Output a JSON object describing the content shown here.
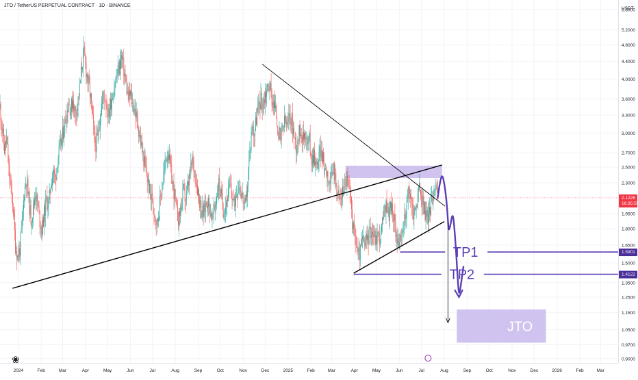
{
  "header": {
    "symbol": "JTO / TetherUS PERPETUAL CONTRACT · 1D · BINANCE"
  },
  "price_scale": {
    "currency": "USDT",
    "last_price": "2.1226",
    "countdown": "16:35:55",
    "tp1_price": "1.5901",
    "tp2_price": "1.4122"
  },
  "annotations": {
    "tp1": "TP1",
    "tp2": "TP2",
    "zone_label": "JTO"
  },
  "colors": {
    "up": "#26a69a",
    "down": "#ef5350",
    "annotation": "#5b3fb5",
    "zone_fill": "#c8b9ec",
    "trendline": "#000000",
    "last_price_badge": "#f23645",
    "tp_badge": "#4a2e9a"
  },
  "chart_data": {
    "type": "candlestick",
    "title": "JTO / TetherUS PERPETUAL CONTRACT · 1D · BINANCE",
    "yscale": "log",
    "ylim": [
      0.88,
      6.1
    ],
    "xlim": [
      "2023-12-07",
      "2026-03-25"
    ],
    "y_ticks": [
      5.8,
      5.2,
      4.8,
      4.4,
      4.0,
      3.6,
      3.3,
      3.0,
      2.7,
      2.5,
      2.3,
      1.95,
      1.8,
      1.65,
      1.5,
      1.35,
      1.25,
      1.15,
      1.05,
      0.97,
      0.9
    ],
    "x_ticks": [
      {
        "label": "2024",
        "date": "2024-01-01"
      },
      {
        "label": "Feb",
        "date": "2024-02-01"
      },
      {
        "label": "Mar",
        "date": "2024-03-01"
      },
      {
        "label": "Apr",
        "date": "2024-04-01"
      },
      {
        "label": "May",
        "date": "2024-05-01"
      },
      {
        "label": "Jun",
        "date": "2024-06-01"
      },
      {
        "label": "Jul",
        "date": "2024-07-01"
      },
      {
        "label": "Aug",
        "date": "2024-08-01"
      },
      {
        "label": "Sep",
        "date": "2024-09-01"
      },
      {
        "label": "Oct",
        "date": "2024-10-01"
      },
      {
        "label": "Nov",
        "date": "2024-11-01"
      },
      {
        "label": "Dec",
        "date": "2024-12-01"
      },
      {
        "label": "2025",
        "date": "2025-01-01"
      },
      {
        "label": "Feb",
        "date": "2025-02-01"
      },
      {
        "label": "Mar",
        "date": "2025-03-01"
      },
      {
        "label": "Apr",
        "date": "2025-04-01"
      },
      {
        "label": "May",
        "date": "2025-05-01"
      },
      {
        "label": "Jun",
        "date": "2025-06-01"
      },
      {
        "label": "Jul",
        "date": "2025-07-01"
      },
      {
        "label": "Aug",
        "date": "2025-08-01"
      },
      {
        "label": "Sep",
        "date": "2025-09-01"
      },
      {
        "label": "Oct",
        "date": "2025-10-01"
      },
      {
        "label": "Nov",
        "date": "2025-11-01"
      },
      {
        "label": "Dec",
        "date": "2025-12-01"
      },
      {
        "label": "2026",
        "date": "2026-01-01"
      },
      {
        "label": "Feb",
        "date": "2026-02-01"
      },
      {
        "label": "Mar",
        "date": "2026-03-01"
      }
    ],
    "series_path": [
      [
        "2023-12-07",
        3.45
      ],
      [
        "2023-12-10",
        3.05
      ],
      [
        "2023-12-13",
        2.75
      ],
      [
        "2023-12-16",
        2.9
      ],
      [
        "2023-12-19",
        2.45
      ],
      [
        "2023-12-22",
        2.2
      ],
      [
        "2023-12-25",
        2.0
      ],
      [
        "2023-12-28",
        1.65
      ],
      [
        "2023-12-31",
        1.55
      ],
      [
        "2024-01-03",
        1.62
      ],
      [
        "2024-01-06",
        1.85
      ],
      [
        "2024-01-09",
        2.2
      ],
      [
        "2024-01-12",
        2.35
      ],
      [
        "2024-01-15",
        2.1
      ],
      [
        "2024-01-18",
        1.9
      ],
      [
        "2024-01-21",
        2.0
      ],
      [
        "2024-01-24",
        2.2
      ],
      [
        "2024-01-27",
        2.05
      ],
      [
        "2024-01-30",
        1.88
      ],
      [
        "2024-02-02",
        1.8
      ],
      [
        "2024-02-05",
        1.95
      ],
      [
        "2024-02-08",
        2.1
      ],
      [
        "2024-02-11",
        2.05
      ],
      [
        "2024-02-14",
        2.3
      ],
      [
        "2024-02-17",
        2.45
      ],
      [
        "2024-02-20",
        2.35
      ],
      [
        "2024-02-23",
        2.6
      ],
      [
        "2024-02-26",
        2.75
      ],
      [
        "2024-02-29",
        2.9
      ],
      [
        "2024-03-03",
        3.1
      ],
      [
        "2024-03-06",
        3.3
      ],
      [
        "2024-03-09",
        3.55
      ],
      [
        "2024-03-12",
        3.4
      ],
      [
        "2024-03-15",
        3.6
      ],
      [
        "2024-03-18",
        3.3
      ],
      [
        "2024-03-21",
        3.5
      ],
      [
        "2024-03-24",
        3.8
      ],
      [
        "2024-03-27",
        4.3
      ],
      [
        "2024-03-30",
        4.6
      ],
      [
        "2024-04-02",
        4.2
      ],
      [
        "2024-04-05",
        3.9
      ],
      [
        "2024-04-08",
        3.6
      ],
      [
        "2024-04-11",
        3.2
      ],
      [
        "2024-04-14",
        2.8
      ],
      [
        "2024-04-17",
        2.9
      ],
      [
        "2024-04-20",
        3.2
      ],
      [
        "2024-04-23",
        3.5
      ],
      [
        "2024-04-26",
        3.7
      ],
      [
        "2024-04-29",
        3.55
      ],
      [
        "2024-05-02",
        3.3
      ],
      [
        "2024-05-05",
        3.5
      ],
      [
        "2024-05-08",
        3.7
      ],
      [
        "2024-05-11",
        3.9
      ],
      [
        "2024-05-14",
        4.1
      ],
      [
        "2024-05-17",
        4.3
      ],
      [
        "2024-05-20",
        4.5
      ],
      [
        "2024-05-23",
        4.2
      ],
      [
        "2024-05-26",
        3.9
      ],
      [
        "2024-05-29",
        3.6
      ],
      [
        "2024-06-01",
        3.7
      ],
      [
        "2024-06-04",
        3.5
      ],
      [
        "2024-06-07",
        3.4
      ],
      [
        "2024-06-10",
        3.2
      ],
      [
        "2024-06-13",
        3.0
      ],
      [
        "2024-06-16",
        2.8
      ],
      [
        "2024-06-19",
        2.6
      ],
      [
        "2024-06-22",
        2.45
      ],
      [
        "2024-06-25",
        2.3
      ],
      [
        "2024-06-28",
        2.15
      ],
      [
        "2024-07-01",
        2.1
      ],
      [
        "2024-07-04",
        1.95
      ],
      [
        "2024-07-07",
        1.85
      ],
      [
        "2024-07-10",
        2.0
      ],
      [
        "2024-07-13",
        2.2
      ],
      [
        "2024-07-16",
        2.4
      ],
      [
        "2024-07-19",
        2.6
      ],
      [
        "2024-07-22",
        2.75
      ],
      [
        "2024-07-25",
        2.5
      ],
      [
        "2024-07-28",
        2.3
      ],
      [
        "2024-07-31",
        2.15
      ],
      [
        "2024-08-03",
        1.95
      ],
      [
        "2024-08-06",
        1.9
      ],
      [
        "2024-08-09",
        2.05
      ],
      [
        "2024-08-12",
        2.2
      ],
      [
        "2024-08-15",
        2.1
      ],
      [
        "2024-08-18",
        2.25
      ],
      [
        "2024-08-21",
        2.4
      ],
      [
        "2024-08-24",
        2.6
      ],
      [
        "2024-08-27",
        2.45
      ],
      [
        "2024-08-30",
        2.3
      ],
      [
        "2024-09-02",
        2.15
      ],
      [
        "2024-09-05",
        2.0
      ],
      [
        "2024-09-08",
        1.95
      ],
      [
        "2024-09-11",
        2.05
      ],
      [
        "2024-09-14",
        2.1
      ],
      [
        "2024-09-17",
        2.0
      ],
      [
        "2024-09-20",
        1.9
      ],
      [
        "2024-09-23",
        2.0
      ],
      [
        "2024-09-26",
        2.15
      ],
      [
        "2024-09-29",
        2.3
      ],
      [
        "2024-10-02",
        2.15
      ],
      [
        "2024-10-05",
        2.0
      ],
      [
        "2024-10-08",
        2.05
      ],
      [
        "2024-10-11",
        2.15
      ],
      [
        "2024-10-14",
        2.25
      ],
      [
        "2024-10-17",
        2.15
      ],
      [
        "2024-10-20",
        2.05
      ],
      [
        "2024-10-23",
        2.2
      ],
      [
        "2024-10-26",
        2.3
      ],
      [
        "2024-10-29",
        2.2
      ],
      [
        "2024-11-01",
        2.1
      ],
      [
        "2024-11-04",
        2.0
      ],
      [
        "2024-11-07",
        2.3
      ],
      [
        "2024-11-10",
        2.7
      ],
      [
        "2024-11-13",
        3.1
      ],
      [
        "2024-11-16",
        3.0
      ],
      [
        "2024-11-19",
        3.25
      ],
      [
        "2024-11-22",
        3.45
      ],
      [
        "2024-11-25",
        3.6
      ],
      [
        "2024-11-28",
        3.5
      ],
      [
        "2024-12-01",
        3.7
      ],
      [
        "2024-12-04",
        3.8
      ],
      [
        "2024-12-07",
        3.9
      ],
      [
        "2024-12-10",
        3.6
      ],
      [
        "2024-12-13",
        3.5
      ],
      [
        "2024-12-16",
        3.3
      ],
      [
        "2024-12-19",
        3.0
      ],
      [
        "2024-12-22",
        2.9
      ],
      [
        "2024-12-25",
        3.1
      ],
      [
        "2024-12-28",
        3.2
      ],
      [
        "2024-12-31",
        3.1
      ],
      [
        "2025-01-03",
        3.3
      ],
      [
        "2025-01-06",
        3.2
      ],
      [
        "2025-01-09",
        2.95
      ],
      [
        "2025-01-12",
        2.8
      ],
      [
        "2025-01-15",
        2.95
      ],
      [
        "2025-01-18",
        3.1
      ],
      [
        "2025-01-21",
        2.9
      ],
      [
        "2025-01-24",
        3.05
      ],
      [
        "2025-01-27",
        2.8
      ],
      [
        "2025-01-30",
        2.9
      ],
      [
        "2025-02-02",
        2.6
      ],
      [
        "2025-02-05",
        2.7
      ],
      [
        "2025-02-08",
        2.5
      ],
      [
        "2025-02-11",
        2.6
      ],
      [
        "2025-02-14",
        2.75
      ],
      [
        "2025-02-17",
        2.6
      ],
      [
        "2025-02-20",
        2.5
      ],
      [
        "2025-02-23",
        2.45
      ],
      [
        "2025-02-26",
        2.3
      ],
      [
        "2025-03-01",
        2.35
      ],
      [
        "2025-03-04",
        2.5
      ],
      [
        "2025-03-07",
        2.3
      ],
      [
        "2025-03-10",
        2.15
      ],
      [
        "2025-03-13",
        2.1
      ],
      [
        "2025-03-16",
        2.2
      ],
      [
        "2025-03-19",
        2.3
      ],
      [
        "2025-03-22",
        2.35
      ],
      [
        "2025-03-25",
        2.2
      ],
      [
        "2025-03-28",
        2.0
      ],
      [
        "2025-03-31",
        1.8
      ],
      [
        "2025-04-03",
        1.7
      ],
      [
        "2025-04-06",
        1.55
      ],
      [
        "2025-04-09",
        1.6
      ],
      [
        "2025-04-12",
        1.7
      ],
      [
        "2025-04-15",
        1.65
      ],
      [
        "2025-04-18",
        1.7
      ],
      [
        "2025-04-21",
        1.75
      ],
      [
        "2025-04-24",
        1.8
      ],
      [
        "2025-04-27",
        1.75
      ],
      [
        "2025-04-30",
        1.7
      ],
      [
        "2025-05-03",
        1.75
      ],
      [
        "2025-05-06",
        1.7
      ],
      [
        "2025-05-09",
        1.85
      ],
      [
        "2025-05-12",
        2.0
      ],
      [
        "2025-05-15",
        2.05
      ],
      [
        "2025-05-18",
        1.95
      ],
      [
        "2025-05-21",
        2.05
      ],
      [
        "2025-05-24",
        1.9
      ],
      [
        "2025-05-27",
        1.8
      ],
      [
        "2025-05-30",
        1.7
      ],
      [
        "2025-06-02",
        1.65
      ],
      [
        "2025-06-05",
        1.75
      ],
      [
        "2025-06-08",
        1.9
      ],
      [
        "2025-06-11",
        2.05
      ],
      [
        "2025-06-14",
        2.2
      ],
      [
        "2025-06-17",
        2.1
      ],
      [
        "2025-06-20",
        1.95
      ],
      [
        "2025-06-23",
        2.0
      ],
      [
        "2025-06-26",
        2.15
      ],
      [
        "2025-06-29",
        2.25
      ],
      [
        "2025-07-02",
        2.1
      ],
      [
        "2025-07-05",
        2.0
      ],
      [
        "2025-07-08",
        1.9
      ],
      [
        "2025-07-11",
        1.95
      ],
      [
        "2025-07-14",
        2.05
      ],
      [
        "2025-07-17",
        2.2
      ],
      [
        "2025-07-20",
        2.3
      ],
      [
        "2025-07-23",
        2.12
      ]
    ],
    "candle_wick_ratio": 0.06,
    "last_price": 2.1226,
    "levels": [
      {
        "label": "TP1",
        "price": 1.5901
      },
      {
        "label": "TP2",
        "price": 1.4122
      }
    ],
    "zones": [
      {
        "label": "",
        "from": "2025-03-20",
        "to": "2025-07-29",
        "low": 2.36,
        "high": 2.52
      },
      {
        "label": "JTO",
        "from": "2025-08-18",
        "to": "2025-12-17",
        "low": 0.98,
        "high": 1.17
      }
    ],
    "trendlines": [
      {
        "from": [
          "2023-12-24",
          1.31
        ],
        "to": [
          "2025-07-29",
          2.53
        ]
      },
      {
        "from": [
          "2024-11-27",
          4.33
        ],
        "to": [
          "2025-08-02",
          2.03
        ]
      },
      {
        "from": [
          "2025-03-31",
          1.42
        ],
        "to": [
          "2025-08-01",
          1.87
        ]
      }
    ],
    "projection": [
      [
        "2025-07-23",
        2.12
      ],
      [
        "2025-07-26",
        2.3
      ],
      [
        "2025-07-29",
        2.41
      ],
      [
        "2025-08-01",
        2.3
      ],
      [
        "2025-08-04",
        2.1
      ],
      [
        "2025-08-06",
        1.88
      ],
      [
        "2025-08-07",
        1.78
      ],
      [
        "2025-08-09",
        1.82
      ],
      [
        "2025-08-12",
        1.95
      ],
      [
        "2025-08-14",
        1.88
      ],
      [
        "2025-08-17",
        1.6
      ],
      [
        "2025-08-19",
        1.4
      ],
      [
        "2025-08-21",
        1.25
      ],
      [
        "2025-08-24",
        1.35
      ],
      [
        "2025-08-27",
        1.47
      ]
    ]
  }
}
